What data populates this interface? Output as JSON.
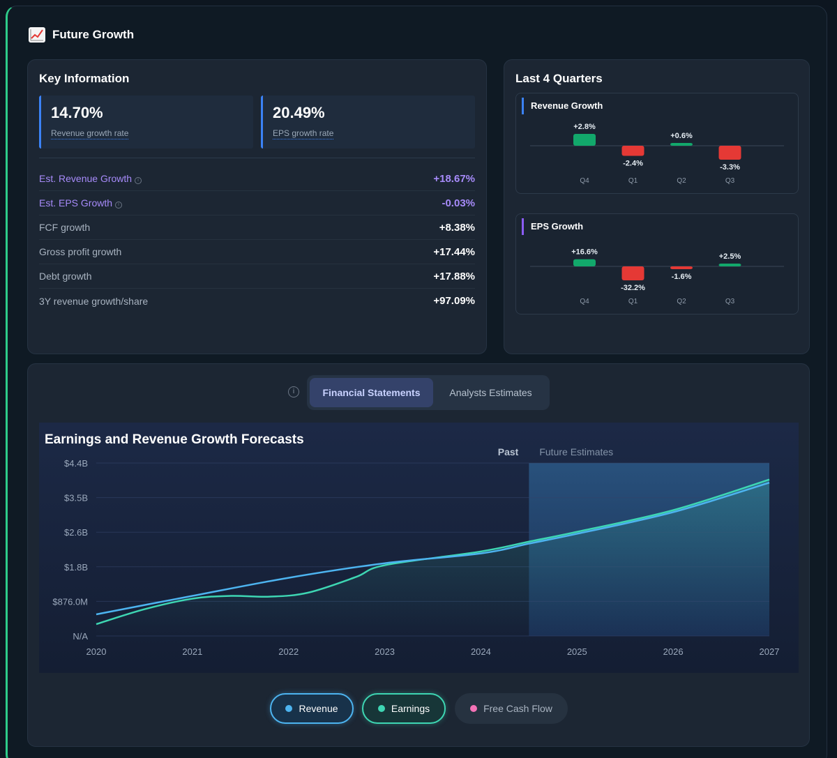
{
  "header": {
    "icon": "chart-increasing-icon",
    "title": "Future Growth"
  },
  "key_info": {
    "title": "Key Information",
    "kpis": [
      {
        "value": "14.70%",
        "label": "Revenue growth rate"
      },
      {
        "value": "20.49%",
        "label": "EPS growth rate"
      }
    ],
    "metrics": [
      {
        "label": "Est. Revenue Growth",
        "value": "+18.67%",
        "estimate": true
      },
      {
        "label": "Est. EPS Growth",
        "value": "-0.03%",
        "estimate": true
      },
      {
        "label": "FCF growth",
        "value": "+8.38%",
        "estimate": false
      },
      {
        "label": "Gross profit growth",
        "value": "+17.44%",
        "estimate": false
      },
      {
        "label": "Debt growth",
        "value": "+17.88%",
        "estimate": false
      },
      {
        "label": "3Y revenue growth/share",
        "value": "+97.09%",
        "estimate": false
      }
    ]
  },
  "quarters": {
    "title": "Last 4 Quarters",
    "panels": [
      {
        "title": "Revenue Growth",
        "accent": "#3b82f6",
        "items": [
          {
            "quarter": "Q4",
            "value": 2.8,
            "label": "+2.8%"
          },
          {
            "quarter": "Q1",
            "value": -2.4,
            "label": "-2.4%"
          },
          {
            "quarter": "Q2",
            "value": 0.6,
            "label": "+0.6%"
          },
          {
            "quarter": "Q3",
            "value": -3.3,
            "label": "-3.3%"
          }
        ]
      },
      {
        "title": "EPS Growth",
        "accent": "#8b5cf6",
        "items": [
          {
            "quarter": "Q4",
            "value": 16.6,
            "label": "+16.6%"
          },
          {
            "quarter": "Q1",
            "value": -32.2,
            "label": "-32.2%"
          },
          {
            "quarter": "Q2",
            "value": -1.6,
            "label": "-1.6%"
          },
          {
            "quarter": "Q3",
            "value": 2.5,
            "label": "+2.5%"
          }
        ]
      }
    ]
  },
  "tabs": {
    "info_icon": "info-icon",
    "items": [
      {
        "label": "Financial Statements",
        "active": true
      },
      {
        "label": "Analysts Estimates",
        "active": false
      }
    ]
  },
  "chart_data": {
    "type": "line",
    "title": "Earnings and Revenue Growth Forecasts",
    "region_labels": {
      "past": "Past",
      "future": "Future Estimates"
    },
    "future_start": 2024.5,
    "x_ticks": [
      "2020",
      "2021",
      "2022",
      "2023",
      "2024",
      "2025",
      "2026",
      "2027"
    ],
    "y_ticks": [
      "N/A",
      "$876.0M",
      "$1.8B",
      "$2.6B",
      "$3.5B",
      "$4.4B"
    ],
    "ylim": [
      0,
      4.4
    ],
    "series": [
      {
        "name": "Revenue",
        "color": "#4db4f0",
        "x": [
          2020,
          2021,
          2022,
          2023,
          2024,
          2024.5,
          2025,
          2026,
          2027
        ],
        "values": [
          0.55,
          1.02,
          1.48,
          1.85,
          2.1,
          2.35,
          2.6,
          3.15,
          3.9
        ]
      },
      {
        "name": "Earnings",
        "color": "#3ed6b3",
        "x": [
          2020,
          2020.5,
          2021,
          2021.4,
          2021.8,
          2022.2,
          2022.7,
          2023,
          2024,
          2024.5,
          2025,
          2026,
          2027
        ],
        "values": [
          0.3,
          0.68,
          0.95,
          1.02,
          1.0,
          1.1,
          1.5,
          1.8,
          2.15,
          2.4,
          2.65,
          3.2,
          3.98
        ]
      }
    ]
  },
  "legend": [
    {
      "label": "Revenue",
      "color": "#4db4f0",
      "active": true
    },
    {
      "label": "Earnings",
      "color": "#3ed6b3",
      "active": true
    },
    {
      "label": "Free Cash Flow",
      "color": "#f472b6",
      "active": false
    }
  ]
}
